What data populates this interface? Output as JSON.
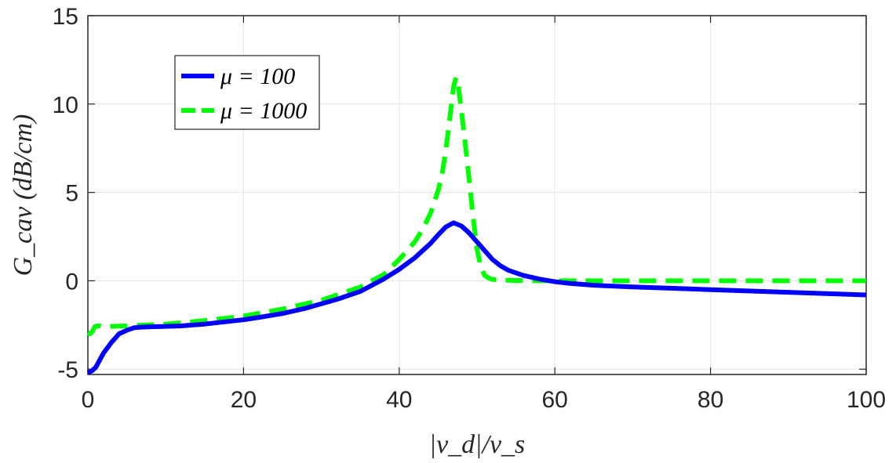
{
  "chart_data": {
    "type": "line",
    "title": "",
    "xlabel": "|v_d|/v_s",
    "ylabel": "G_cav (dB/cm)",
    "xlim": [
      0,
      100
    ],
    "ylim": [
      -5.3,
      15
    ],
    "xticks": [
      0,
      20,
      40,
      60,
      80,
      100
    ],
    "yticks": [
      -5,
      0,
      5,
      10,
      15
    ],
    "xtick_labels": [
      "0",
      "20",
      "40",
      "60",
      "80",
      "100"
    ],
    "ytick_labels": [
      "-5",
      "0",
      "5",
      "10",
      "15"
    ],
    "grid": true,
    "legend_position": "top-left",
    "series": [
      {
        "name": "μ = 100",
        "color": "#0000ff",
        "style": "solid",
        "x": [
          0,
          0.5,
          1,
          1.5,
          2,
          3,
          4,
          5,
          6,
          7,
          8,
          10,
          12,
          15,
          18,
          20,
          22,
          25,
          28,
          30,
          32,
          35,
          38,
          40,
          42,
          44,
          45,
          46,
          47,
          48,
          49,
          50,
          51,
          52,
          53,
          54,
          55,
          56,
          58,
          60,
          62,
          65,
          70,
          80,
          90,
          100
        ],
        "y": [
          -5.2,
          -5.1,
          -4.9,
          -4.5,
          -4.1,
          -3.5,
          -3.0,
          -2.8,
          -2.65,
          -2.62,
          -2.6,
          -2.58,
          -2.55,
          -2.45,
          -2.3,
          -2.2,
          -2.07,
          -1.85,
          -1.55,
          -1.3,
          -1.05,
          -0.6,
          0.1,
          0.65,
          1.3,
          2.1,
          2.6,
          3.05,
          3.28,
          3.1,
          2.7,
          2.2,
          1.7,
          1.2,
          0.85,
          0.6,
          0.45,
          0.3,
          0.1,
          -0.05,
          -0.15,
          -0.25,
          -0.35,
          -0.5,
          -0.65,
          -0.8
        ]
      },
      {
        "name": "μ = 1000",
        "color": "#00ff00",
        "style": "dashed",
        "x": [
          0,
          0.3,
          0.6,
          0.9,
          1.2,
          1.6,
          2,
          3,
          5,
          10,
          15,
          20,
          25,
          30,
          35,
          38,
          40,
          42,
          43,
          44,
          45,
          45.5,
          46,
          46.5,
          47,
          47.3,
          47.6,
          48,
          48.5,
          49,
          49.5,
          50,
          50.5,
          51,
          51.5,
          52,
          53,
          55,
          57,
          60,
          70,
          80,
          90,
          100
        ],
        "y": [
          -2.95,
          -3.0,
          -2.85,
          -2.6,
          -2.55,
          -2.55,
          -2.6,
          -2.58,
          -2.55,
          -2.45,
          -2.25,
          -2.0,
          -1.6,
          -1.1,
          -0.35,
          0.35,
          1.2,
          2.2,
          2.9,
          3.8,
          5.1,
          6.0,
          7.4,
          9.2,
          11.0,
          11.5,
          11.0,
          9.6,
          7.7,
          5.7,
          3.6,
          1.8,
          0.75,
          0.3,
          0.15,
          0.08,
          0.04,
          0.02,
          0.01,
          0.0,
          0.0,
          0.0,
          0.0,
          0.0
        ]
      }
    ]
  }
}
